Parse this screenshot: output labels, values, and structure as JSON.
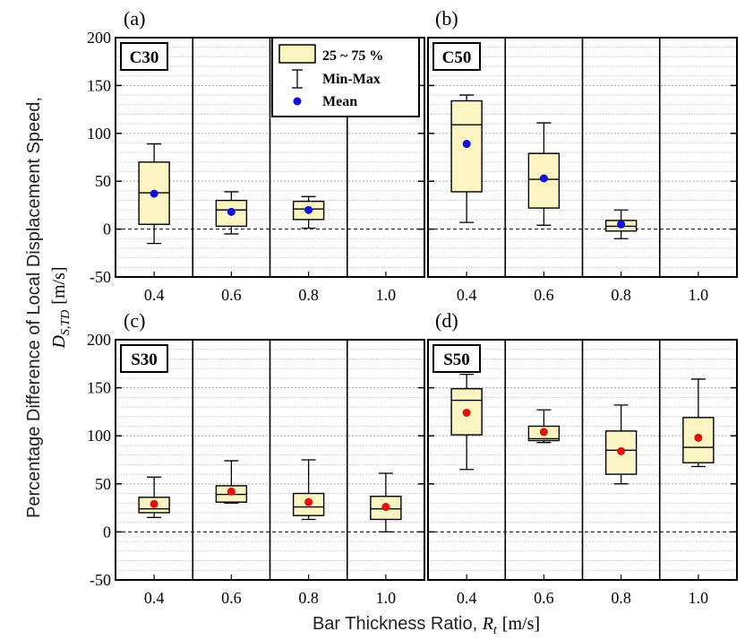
{
  "figure": {
    "ylabel_line1": "Percentage Difference of Local Displacement Speed,",
    "ylabel_symbol": "D",
    "ylabel_sub": "S,TD",
    "ylabel_unit": "[m/s]",
    "xlabel_text": "Bar Thickness Ratio, ",
    "xlabel_symbol": "R",
    "xlabel_sub": "t",
    "xlabel_unit": "[m/s]"
  },
  "legend": {
    "box_label": "25 ~ 75 %",
    "whisker_label": "Min-Max",
    "mean_label": "Mean"
  },
  "colors": {
    "box_fill": "#faf5c3",
    "mean_blue": "#1010d8",
    "mean_red": "#e0100f"
  },
  "chart_data": [
    {
      "type": "box",
      "panel": "(a)",
      "tag": "C30",
      "mean_color": "blue",
      "categories": [
        "0.4",
        "0.6",
        "0.8",
        "1.0"
      ],
      "ylim": [
        -50,
        200
      ],
      "yticks": [
        "200",
        "150",
        "100",
        "50",
        "0",
        "-50"
      ],
      "boxes": [
        {
          "min": -15,
          "q1": 5,
          "median": 38,
          "q3": 70,
          "max": 89,
          "mean": 37
        },
        {
          "min": -5,
          "q1": 3,
          "median": 20,
          "q3": 30,
          "max": 39,
          "mean": 18
        },
        {
          "min": 1,
          "q1": 10,
          "median": 21,
          "q3": 29,
          "max": 34,
          "mean": 20
        },
        null
      ]
    },
    {
      "type": "box",
      "panel": "(b)",
      "tag": "C50",
      "mean_color": "blue",
      "categories": [
        "0.4",
        "0.6",
        "0.8",
        "1.0"
      ],
      "ylim": [
        -50,
        200
      ],
      "yticks": [],
      "boxes": [
        {
          "min": 7,
          "q1": 39,
          "median": 109,
          "q3": 134,
          "max": 140,
          "mean": 89
        },
        {
          "min": 4,
          "q1": 22,
          "median": 52,
          "q3": 79,
          "max": 111,
          "mean": 53
        },
        {
          "min": -10,
          "q1": -2,
          "median": 3,
          "q3": 9,
          "max": 20,
          "mean": 5
        },
        null
      ]
    },
    {
      "type": "box",
      "panel": "(c)",
      "tag": "S30",
      "mean_color": "red",
      "categories": [
        "0.4",
        "0.6",
        "0.8",
        "1.0"
      ],
      "ylim": [
        -50,
        200
      ],
      "yticks": [
        "200",
        "150",
        "100",
        "50",
        "0",
        "-50"
      ],
      "boxes": [
        {
          "min": 15,
          "q1": 20,
          "median": 24,
          "q3": 36,
          "max": 57,
          "mean": 29
        },
        {
          "min": 30,
          "q1": 31,
          "median": 39,
          "q3": 48,
          "max": 74,
          "mean": 42
        },
        {
          "min": 13,
          "q1": 17,
          "median": 26,
          "q3": 40,
          "max": 75,
          "mean": 31
        },
        {
          "min": 0,
          "q1": 13,
          "median": 24,
          "q3": 37,
          "max": 61,
          "mean": 26
        }
      ]
    },
    {
      "type": "box",
      "panel": "(d)",
      "tag": "S50",
      "mean_color": "red",
      "categories": [
        "0.4",
        "0.6",
        "0.8",
        "1.0"
      ],
      "ylim": [
        -50,
        200
      ],
      "yticks": [],
      "boxes": [
        {
          "min": 65,
          "q1": 101,
          "median": 137,
          "q3": 149,
          "max": 164,
          "mean": 124
        },
        {
          "min": 93,
          "q1": 95,
          "median": 97,
          "q3": 110,
          "max": 127,
          "mean": 104
        },
        {
          "min": 50,
          "q1": 60,
          "median": 85,
          "q3": 105,
          "max": 132,
          "mean": 84
        },
        {
          "min": 68,
          "q1": 72,
          "median": 88,
          "q3": 119,
          "max": 159,
          "mean": 98
        }
      ]
    }
  ]
}
